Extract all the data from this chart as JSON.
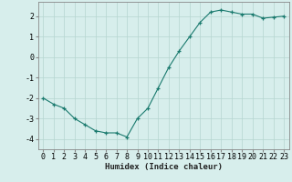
{
  "x": [
    0,
    1,
    2,
    3,
    4,
    5,
    6,
    7,
    8,
    9,
    10,
    11,
    12,
    13,
    14,
    15,
    16,
    17,
    18,
    19,
    20,
    21,
    22,
    23
  ],
  "y": [
    -2.0,
    -2.3,
    -2.5,
    -3.0,
    -3.3,
    -3.6,
    -3.7,
    -3.7,
    -3.9,
    -3.0,
    -2.5,
    -1.5,
    -0.5,
    0.3,
    1.0,
    1.7,
    2.2,
    2.3,
    2.2,
    2.1,
    2.1,
    1.9,
    1.95,
    2.0
  ],
  "line_color": "#1a7a6e",
  "marker": "+",
  "marker_color": "#1a7a6e",
  "bg_color": "#d7eeec",
  "grid_color": "#b5d5d0",
  "axis_color": "#888888",
  "xlabel": "Humidex (Indice chaleur)",
  "xlim": [
    -0.5,
    23.5
  ],
  "ylim": [
    -4.5,
    2.7
  ],
  "yticks": [
    -4,
    -3,
    -2,
    -1,
    0,
    1,
    2
  ],
  "xticks": [
    0,
    1,
    2,
    3,
    4,
    5,
    6,
    7,
    8,
    9,
    10,
    11,
    12,
    13,
    14,
    15,
    16,
    17,
    18,
    19,
    20,
    21,
    22,
    23
  ],
  "xlabel_fontsize": 6.5,
  "tick_fontsize": 6.0
}
